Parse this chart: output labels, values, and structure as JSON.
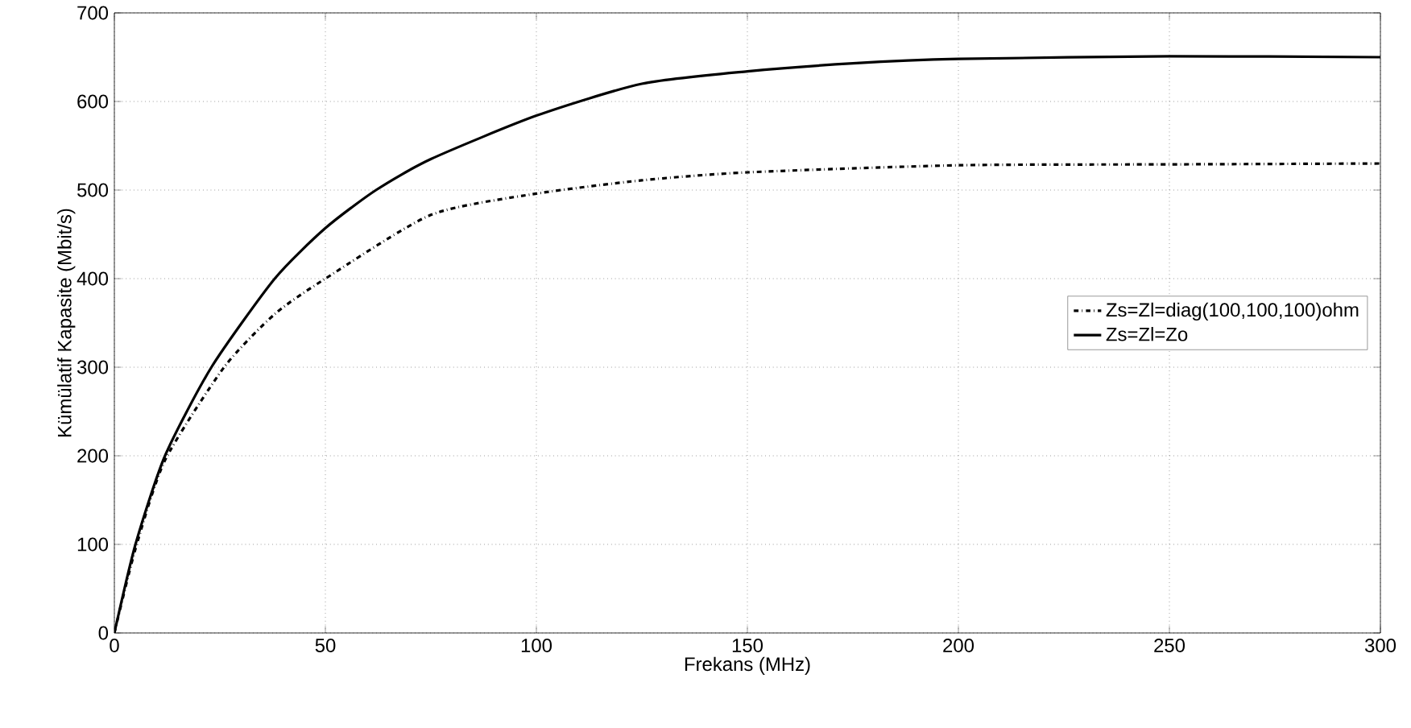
{
  "chart_data": {
    "type": "line",
    "xlabel": "Frekans (MHz)",
    "ylabel": "Kümülatif Kapasite (Mbit/s)",
    "xlim": [
      0,
      300
    ],
    "ylim": [
      0,
      700
    ],
    "xticks": [
      0,
      50,
      100,
      150,
      200,
      250,
      300
    ],
    "yticks": [
      0,
      100,
      200,
      300,
      400,
      500,
      600,
      700
    ],
    "grid": true,
    "legend": "right",
    "series": [
      {
        "name": "Zs=Zl=diag(100,100,100)ohm",
        "color": "#000000",
        "line_style": "dashdot",
        "x": [
          0,
          5,
          12,
          26,
          38,
          50,
          75,
          100,
          125,
          150,
          200,
          250,
          300
        ],
        "values": [
          0,
          95,
          195,
          300,
          360,
          400,
          472,
          496,
          511,
          520,
          528,
          529,
          530
        ]
      },
      {
        "name": "Zs=Zl=Zo",
        "color": "#000000",
        "line_style": "solid",
        "x": [
          0,
          5,
          12,
          23,
          38,
          50,
          62,
          75,
          100,
          125,
          150,
          175,
          200,
          250,
          300
        ],
        "values": [
          0,
          100,
          200,
          300,
          400,
          457,
          500,
          535,
          584,
          620,
          634,
          643,
          648,
          651,
          650
        ]
      }
    ]
  }
}
